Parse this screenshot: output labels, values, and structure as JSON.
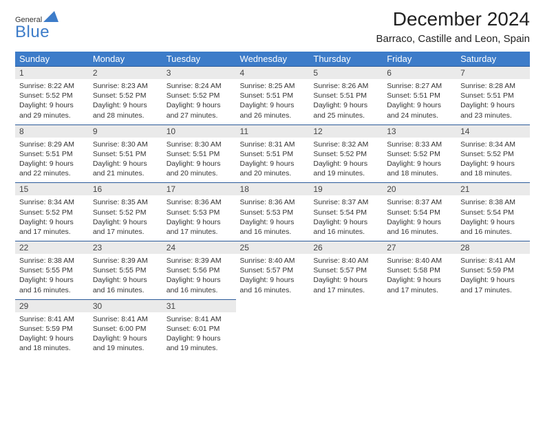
{
  "logo": {
    "general": "General",
    "blue": "Blue"
  },
  "title": "December 2024",
  "subtitle": "Barraco, Castille and Leon, Spain",
  "header_bg": "#3d7cc9",
  "header_fg": "#ffffff",
  "daynum_bg": "#eaeaea",
  "daynum_border": "#2a5a9a",
  "days": [
    "Sunday",
    "Monday",
    "Tuesday",
    "Wednesday",
    "Thursday",
    "Friday",
    "Saturday"
  ],
  "weeks": [
    [
      {
        "n": "1",
        "sr": "Sunrise: 8:22 AM",
        "ss": "Sunset: 5:52 PM",
        "d1": "Daylight: 9 hours",
        "d2": "and 29 minutes."
      },
      {
        "n": "2",
        "sr": "Sunrise: 8:23 AM",
        "ss": "Sunset: 5:52 PM",
        "d1": "Daylight: 9 hours",
        "d2": "and 28 minutes."
      },
      {
        "n": "3",
        "sr": "Sunrise: 8:24 AM",
        "ss": "Sunset: 5:52 PM",
        "d1": "Daylight: 9 hours",
        "d2": "and 27 minutes."
      },
      {
        "n": "4",
        "sr": "Sunrise: 8:25 AM",
        "ss": "Sunset: 5:51 PM",
        "d1": "Daylight: 9 hours",
        "d2": "and 26 minutes."
      },
      {
        "n": "5",
        "sr": "Sunrise: 8:26 AM",
        "ss": "Sunset: 5:51 PM",
        "d1": "Daylight: 9 hours",
        "d2": "and 25 minutes."
      },
      {
        "n": "6",
        "sr": "Sunrise: 8:27 AM",
        "ss": "Sunset: 5:51 PM",
        "d1": "Daylight: 9 hours",
        "d2": "and 24 minutes."
      },
      {
        "n": "7",
        "sr": "Sunrise: 8:28 AM",
        "ss": "Sunset: 5:51 PM",
        "d1": "Daylight: 9 hours",
        "d2": "and 23 minutes."
      }
    ],
    [
      {
        "n": "8",
        "sr": "Sunrise: 8:29 AM",
        "ss": "Sunset: 5:51 PM",
        "d1": "Daylight: 9 hours",
        "d2": "and 22 minutes."
      },
      {
        "n": "9",
        "sr": "Sunrise: 8:30 AM",
        "ss": "Sunset: 5:51 PM",
        "d1": "Daylight: 9 hours",
        "d2": "and 21 minutes."
      },
      {
        "n": "10",
        "sr": "Sunrise: 8:30 AM",
        "ss": "Sunset: 5:51 PM",
        "d1": "Daylight: 9 hours",
        "d2": "and 20 minutes."
      },
      {
        "n": "11",
        "sr": "Sunrise: 8:31 AM",
        "ss": "Sunset: 5:51 PM",
        "d1": "Daylight: 9 hours",
        "d2": "and 20 minutes."
      },
      {
        "n": "12",
        "sr": "Sunrise: 8:32 AM",
        "ss": "Sunset: 5:52 PM",
        "d1": "Daylight: 9 hours",
        "d2": "and 19 minutes."
      },
      {
        "n": "13",
        "sr": "Sunrise: 8:33 AM",
        "ss": "Sunset: 5:52 PM",
        "d1": "Daylight: 9 hours",
        "d2": "and 18 minutes."
      },
      {
        "n": "14",
        "sr": "Sunrise: 8:34 AM",
        "ss": "Sunset: 5:52 PM",
        "d1": "Daylight: 9 hours",
        "d2": "and 18 minutes."
      }
    ],
    [
      {
        "n": "15",
        "sr": "Sunrise: 8:34 AM",
        "ss": "Sunset: 5:52 PM",
        "d1": "Daylight: 9 hours",
        "d2": "and 17 minutes."
      },
      {
        "n": "16",
        "sr": "Sunrise: 8:35 AM",
        "ss": "Sunset: 5:52 PM",
        "d1": "Daylight: 9 hours",
        "d2": "and 17 minutes."
      },
      {
        "n": "17",
        "sr": "Sunrise: 8:36 AM",
        "ss": "Sunset: 5:53 PM",
        "d1": "Daylight: 9 hours",
        "d2": "and 17 minutes."
      },
      {
        "n": "18",
        "sr": "Sunrise: 8:36 AM",
        "ss": "Sunset: 5:53 PM",
        "d1": "Daylight: 9 hours",
        "d2": "and 16 minutes."
      },
      {
        "n": "19",
        "sr": "Sunrise: 8:37 AM",
        "ss": "Sunset: 5:54 PM",
        "d1": "Daylight: 9 hours",
        "d2": "and 16 minutes."
      },
      {
        "n": "20",
        "sr": "Sunrise: 8:37 AM",
        "ss": "Sunset: 5:54 PM",
        "d1": "Daylight: 9 hours",
        "d2": "and 16 minutes."
      },
      {
        "n": "21",
        "sr": "Sunrise: 8:38 AM",
        "ss": "Sunset: 5:54 PM",
        "d1": "Daylight: 9 hours",
        "d2": "and 16 minutes."
      }
    ],
    [
      {
        "n": "22",
        "sr": "Sunrise: 8:38 AM",
        "ss": "Sunset: 5:55 PM",
        "d1": "Daylight: 9 hours",
        "d2": "and 16 minutes."
      },
      {
        "n": "23",
        "sr": "Sunrise: 8:39 AM",
        "ss": "Sunset: 5:55 PM",
        "d1": "Daylight: 9 hours",
        "d2": "and 16 minutes."
      },
      {
        "n": "24",
        "sr": "Sunrise: 8:39 AM",
        "ss": "Sunset: 5:56 PM",
        "d1": "Daylight: 9 hours",
        "d2": "and 16 minutes."
      },
      {
        "n": "25",
        "sr": "Sunrise: 8:40 AM",
        "ss": "Sunset: 5:57 PM",
        "d1": "Daylight: 9 hours",
        "d2": "and 16 minutes."
      },
      {
        "n": "26",
        "sr": "Sunrise: 8:40 AM",
        "ss": "Sunset: 5:57 PM",
        "d1": "Daylight: 9 hours",
        "d2": "and 17 minutes."
      },
      {
        "n": "27",
        "sr": "Sunrise: 8:40 AM",
        "ss": "Sunset: 5:58 PM",
        "d1": "Daylight: 9 hours",
        "d2": "and 17 minutes."
      },
      {
        "n": "28",
        "sr": "Sunrise: 8:41 AM",
        "ss": "Sunset: 5:59 PM",
        "d1": "Daylight: 9 hours",
        "d2": "and 17 minutes."
      }
    ],
    [
      {
        "n": "29",
        "sr": "Sunrise: 8:41 AM",
        "ss": "Sunset: 5:59 PM",
        "d1": "Daylight: 9 hours",
        "d2": "and 18 minutes."
      },
      {
        "n": "30",
        "sr": "Sunrise: 8:41 AM",
        "ss": "Sunset: 6:00 PM",
        "d1": "Daylight: 9 hours",
        "d2": "and 19 minutes."
      },
      {
        "n": "31",
        "sr": "Sunrise: 8:41 AM",
        "ss": "Sunset: 6:01 PM",
        "d1": "Daylight: 9 hours",
        "d2": "and 19 minutes."
      },
      null,
      null,
      null,
      null
    ]
  ]
}
